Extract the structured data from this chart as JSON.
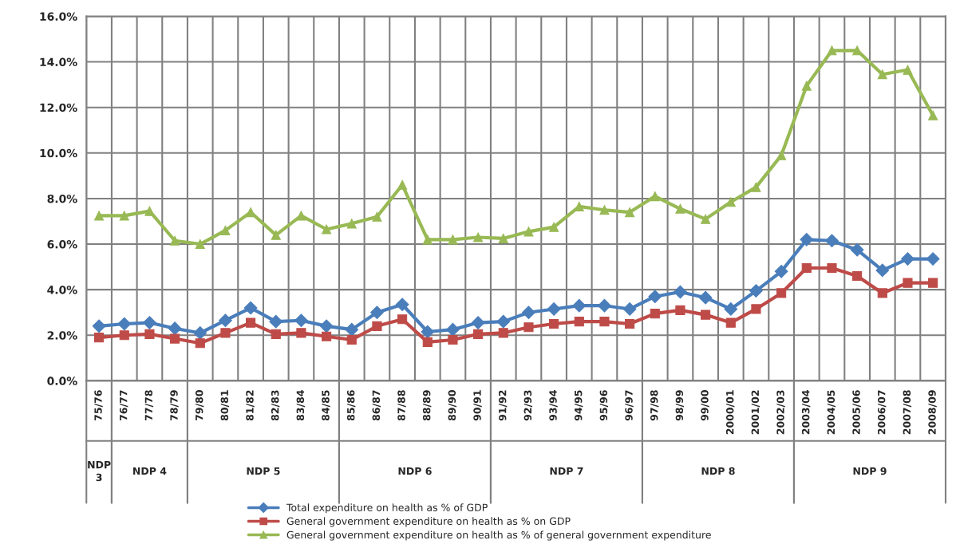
{
  "chart_data": {
    "type": "line",
    "categories": [
      "75/76",
      "76/77",
      "77/78",
      "78/79",
      "79/80",
      "80/81",
      "81/82",
      "82/83",
      "83/84",
      "84/85",
      "85/86",
      "86/87",
      "87/88",
      "88/89",
      "89/90",
      "90/91",
      "91/92",
      "92/93",
      "93/94",
      "94/95",
      "95/96",
      "96/97",
      "97/98",
      "98/99",
      "99/00",
      "2000/01",
      "2001/02",
      "2002/03",
      "2003/04",
      "2004/05",
      "2005/06",
      "2006/07",
      "2007/08",
      "2008/09"
    ],
    "series": [
      {
        "name": "Total expenditure on health as % of GDP",
        "color": "#4a7ebb",
        "marker": "diamond",
        "values": [
          2.4,
          2.5,
          2.55,
          2.3,
          2.1,
          2.65,
          3.2,
          2.6,
          2.65,
          2.4,
          2.25,
          3.0,
          3.35,
          2.15,
          2.25,
          2.55,
          2.6,
          3.0,
          3.15,
          3.3,
          3.3,
          3.15,
          3.7,
          3.9,
          3.65,
          3.15,
          3.95,
          4.8,
          6.2,
          6.15,
          5.75,
          4.85,
          5.35,
          5.35
        ]
      },
      {
        "name": "General government expenditure on health as % on GDP",
        "color": "#be4b48",
        "marker": "square",
        "values": [
          1.9,
          2.0,
          2.05,
          1.85,
          1.65,
          2.1,
          2.55,
          2.05,
          2.1,
          1.95,
          1.8,
          2.4,
          2.7,
          1.7,
          1.8,
          2.05,
          2.1,
          2.35,
          2.5,
          2.6,
          2.6,
          2.5,
          2.95,
          3.1,
          2.9,
          2.55,
          3.15,
          3.85,
          4.95,
          4.95,
          4.6,
          3.85,
          4.3,
          4.3
        ]
      },
      {
        "name": "General government expenditure on health as % of general government expenditure",
        "color": "#98b954",
        "marker": "triangle",
        "values": [
          7.25,
          7.25,
          7.45,
          6.15,
          6.0,
          6.6,
          7.4,
          6.4,
          7.25,
          6.65,
          6.9,
          7.2,
          8.6,
          6.2,
          6.2,
          6.3,
          6.25,
          6.55,
          6.75,
          7.65,
          7.5,
          7.4,
          8.1,
          7.55,
          7.1,
          7.85,
          8.5,
          9.9,
          12.95,
          14.5,
          14.5,
          13.45,
          13.65,
          11.65
        ]
      }
    ],
    "ylim": [
      0,
      16
    ],
    "yticks": [
      {
        "value": 0,
        "label": "0.0%"
      },
      {
        "value": 2,
        "label": "2.0%"
      },
      {
        "value": 4,
        "label": "4.0%"
      },
      {
        "value": 6,
        "label": "6.0%"
      },
      {
        "value": 8,
        "label": "8.0%"
      },
      {
        "value": 10,
        "label": "10.0%"
      },
      {
        "value": 12,
        "label": "12.0%"
      },
      {
        "value": 14,
        "label": "14.0%"
      },
      {
        "value": 16,
        "label": "16.0%"
      }
    ],
    "annotations": [
      "NDP 3",
      "NDP 4",
      "NDP 5",
      "NDP 6",
      "NDP 7",
      "NDP 8",
      "NDP 9"
    ],
    "grid": true,
    "legend": "bottom",
    "line_style": "solid"
  }
}
